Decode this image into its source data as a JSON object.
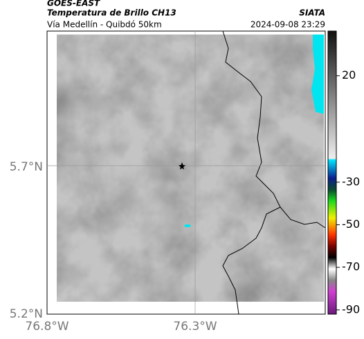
{
  "header": {
    "satellite": "GOES-EAST",
    "product": "Temperatura de Brillo CH13",
    "source": "SIATA",
    "route": "Vía Medellín - Quibdó 50km",
    "timestamp": "2024-09-08 23:29"
  },
  "map": {
    "lat_labels": [
      "5.7°N",
      "5.2°N"
    ],
    "lon_labels": [
      "76.8°W",
      "76.3°W"
    ]
  },
  "colorbar": {
    "range": [
      -92,
      41
    ],
    "ticks": [
      20,
      -30,
      -50,
      -70,
      -90
    ]
  }
}
